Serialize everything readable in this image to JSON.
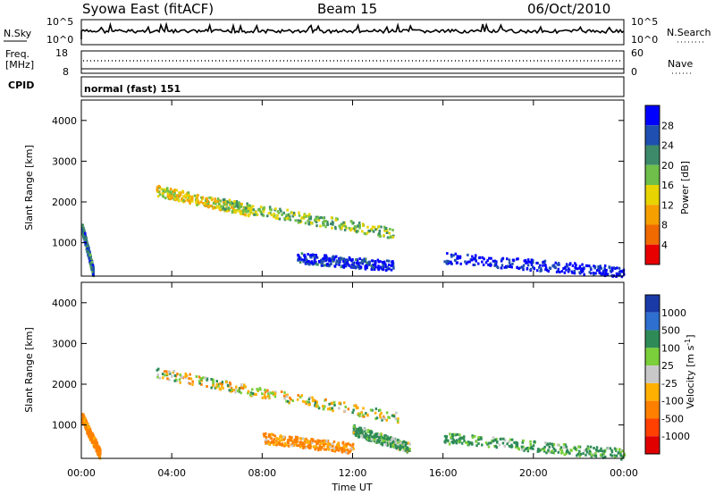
{
  "header": {
    "station": "Syowa East (fitACF)",
    "beam": "Beam 15",
    "date": "06/Oct/2010"
  },
  "panels": {
    "nsky": {
      "label": "N.Sky",
      "right_label": "N.Search",
      "ticks_left": [
        "10^5",
        "10^0"
      ],
      "ticks_right": [
        "10^5",
        "10^0"
      ]
    },
    "freq": {
      "label_line1": "Freq.",
      "label_line2": "[MHz]",
      "right_label": "Nave",
      "ticks_left": [
        "18",
        "8"
      ],
      "ticks_right": [
        "60",
        "0"
      ]
    },
    "cpid": {
      "label": "CPID",
      "value": "normal (fast) 151"
    }
  },
  "chart_data": [
    {
      "type": "heatmap",
      "title": "",
      "xlabel": "",
      "ylabel": "Slant Range [km]",
      "xlim": [
        "00:00",
        "24:00"
      ],
      "ylim": [
        180,
        4500
      ],
      "yticks": [
        "1000",
        "2000",
        "3000",
        "4000"
      ],
      "colorbar": {
        "label": "Power [dB]",
        "ticks": [
          "4",
          "8",
          "12",
          "16",
          "20",
          "24",
          "28"
        ],
        "colors": [
          "#0000ff",
          "#1f4fb0",
          "#3d8a6a",
          "#6fbf4a",
          "#e8d400",
          "#f5a000",
          "#f06a00",
          "#e80000"
        ]
      },
      "features": [
        {
          "t_start": 3.3,
          "t_end": 7.5,
          "range_start": 2300,
          "range_end": 1800,
          "value_db": 12
        },
        {
          "t_start": 6.0,
          "t_end": 13.8,
          "range_start": 2000,
          "range_end": 1250,
          "value_db": 16
        },
        {
          "t_start": 9.5,
          "t_end": 13.8,
          "range_start": 650,
          "range_end": 450,
          "value_db": 26
        },
        {
          "t_start": 16.0,
          "t_end": 24.0,
          "range_start": 650,
          "range_end": 300,
          "value_db": 28
        },
        {
          "t_start": 0.0,
          "t_end": 0.5,
          "range_start": 1400,
          "range_end": 300,
          "value_db": 22
        }
      ]
    },
    {
      "type": "heatmap",
      "title": "",
      "xlabel": "Time UT",
      "ylabel": "Slant Range [km]",
      "xlim": [
        "00:00",
        "24:00"
      ],
      "ylim": [
        180,
        4500
      ],
      "xticks": [
        "00:00",
        "04:00",
        "08:00",
        "12:00",
        "16:00",
        "20:00",
        "00:00"
      ],
      "yticks": [
        "1000",
        "2000",
        "3000",
        "4000"
      ],
      "colorbar": {
        "label": "Velocity [m s^-1]",
        "ticks": [
          "1000",
          "500",
          "100",
          "25",
          "-25",
          "-100",
          "-500",
          "-1000"
        ],
        "colors": [
          "#1a3aa8",
          "#2e6fcf",
          "#2e8b57",
          "#7bcf3a",
          "#c8c8c8",
          "#ffb000",
          "#ff8000",
          "#ff4000",
          "#e00000"
        ]
      },
      "features": [
        {
          "t_start": 3.3,
          "t_end": 14.0,
          "range_start": 2300,
          "range_end": 1200,
          "value_ms": 0
        },
        {
          "t_start": 8.0,
          "t_end": 12.0,
          "range_start": 700,
          "range_end": 450,
          "value_ms": -150
        },
        {
          "t_start": 12.0,
          "t_end": 14.5,
          "range_start": 900,
          "range_end": 450,
          "value_ms": 120
        },
        {
          "t_start": 16.0,
          "t_end": 24.0,
          "range_start": 700,
          "range_end": 300,
          "value_ms": 150
        },
        {
          "t_start": 0.0,
          "t_end": 0.8,
          "range_start": 1200,
          "range_end": 300,
          "value_ms": -200
        }
      ]
    }
  ]
}
